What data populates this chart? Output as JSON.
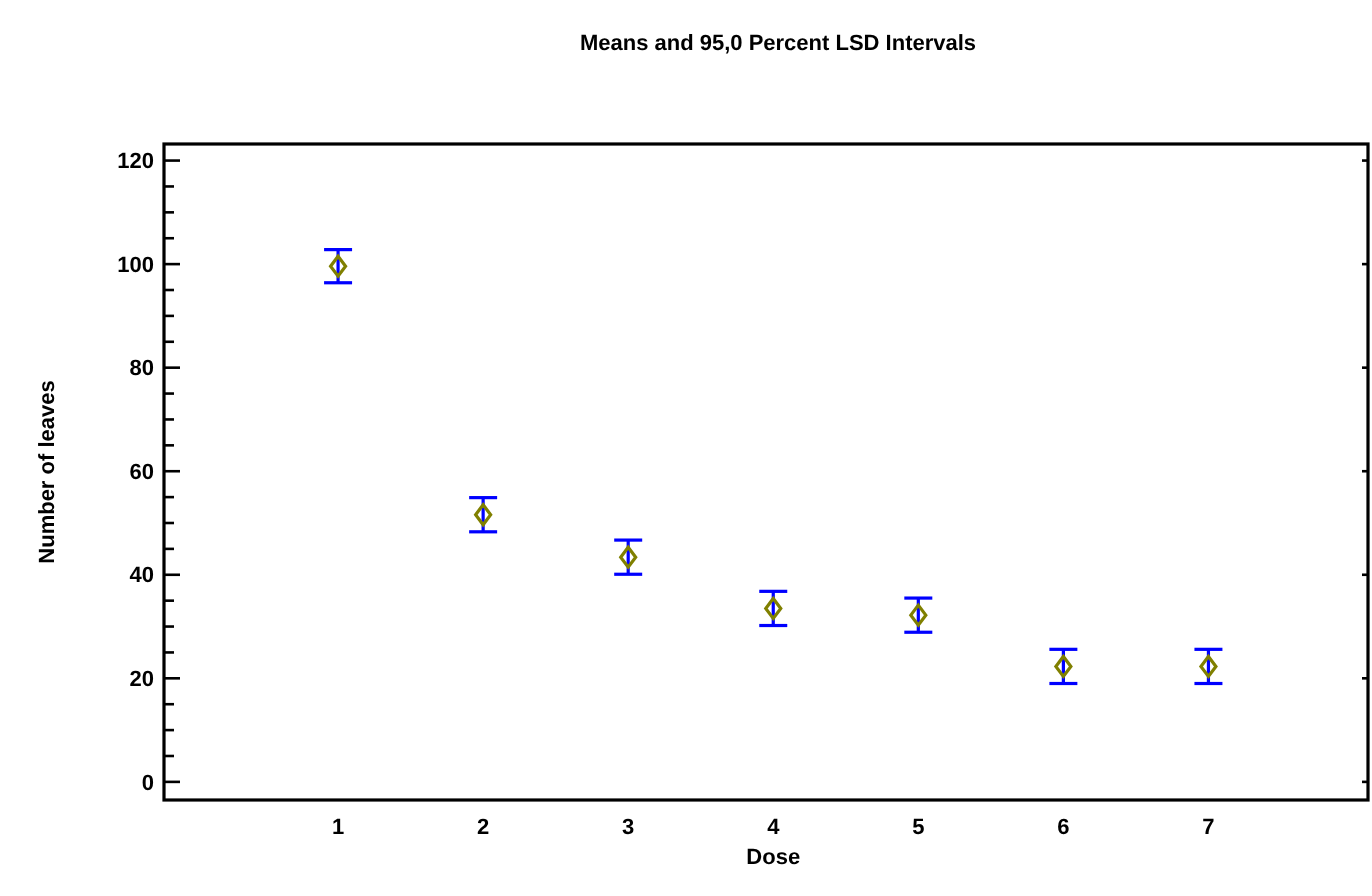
{
  "chart_data": {
    "type": "scatter",
    "title": "Means and 95,0 Percent LSD Intervals",
    "xlabel": "Dose",
    "ylabel": "Number of leaves",
    "x": [
      1,
      2,
      3,
      4,
      5,
      6,
      7
    ],
    "series": [
      {
        "color": "#808000",
        "values": [
          99.6,
          51.6,
          43.4,
          33.5,
          32.2,
          22.3,
          22.3
        ],
        "errors": [
          3.2,
          3.3,
          3.3,
          3.3,
          3.3,
          3.3,
          3.3
        ]
      }
    ],
    "marker": "diamond",
    "grid": false,
    "xlim": [
      -0.2,
      8.1
    ],
    "xticks": [
      1,
      2,
      3,
      4,
      5,
      6,
      7
    ],
    "ylim": [
      -3.5,
      123.2
    ],
    "yticks": [
      0,
      20,
      40,
      60,
      80,
      100,
      120
    ]
  }
}
